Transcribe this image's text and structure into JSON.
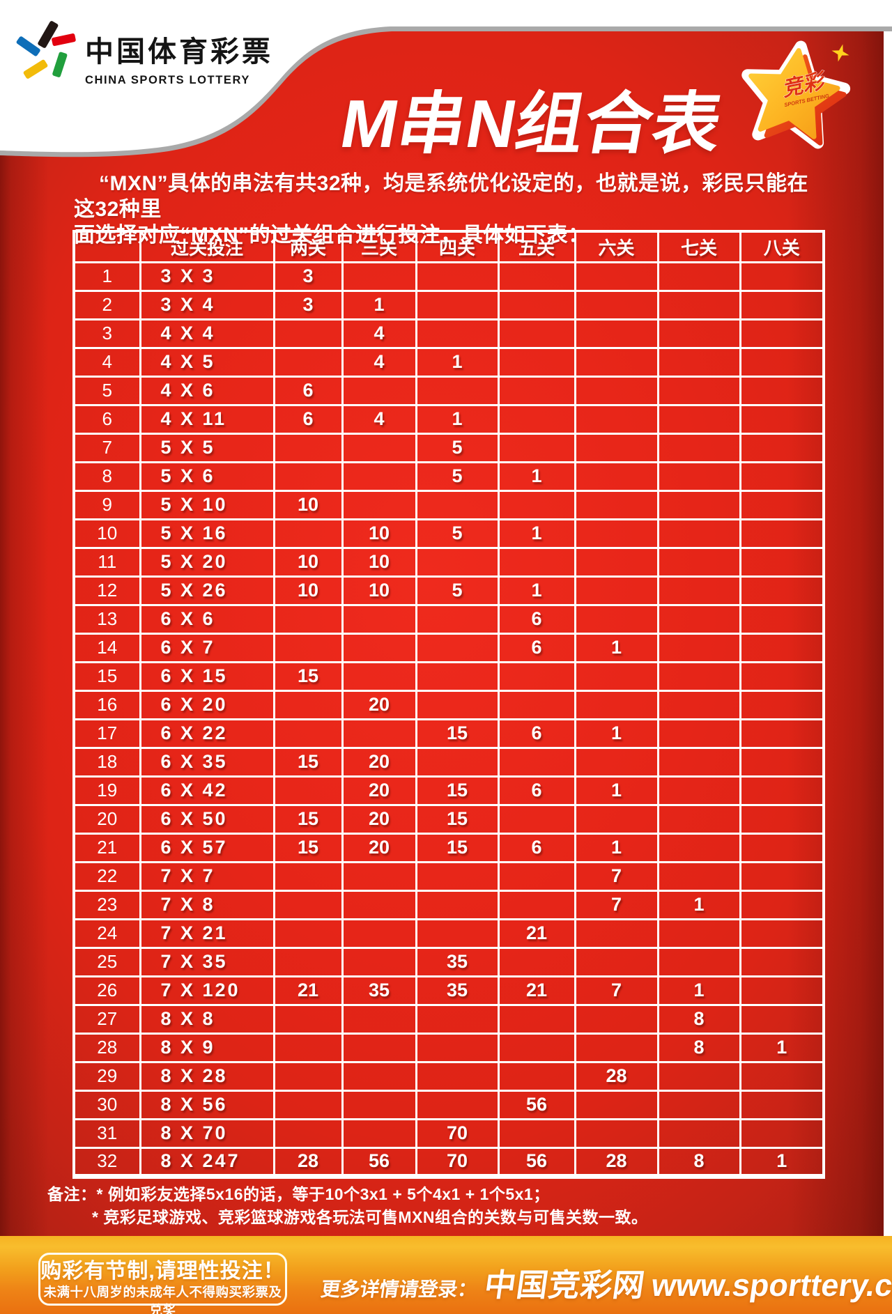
{
  "brand": {
    "logo_cn": "中国体育彩票",
    "logo_en": "CHINA SPORTS LOTTERY"
  },
  "header": {
    "title": "M串N组合表",
    "badge_cn": "竞彩",
    "badge_en": "SPORTS BETTING"
  },
  "intro": {
    "line1": "“MXN”具体的串法有共32种，均是系统优化设定的，也就是说，彩民只能在这32种里",
    "line2": "面选择对应“MXN”的过关组合进行投注，具体如下表："
  },
  "table": {
    "headers": [
      "",
      "过关投注",
      "两关",
      "三关",
      "四关",
      "五关",
      "六关",
      "七关",
      "八关"
    ],
    "rows": [
      {
        "no": "1",
        "bet": "3 X 3",
        "values": [
          "3",
          "",
          "",
          "",
          "",
          "",
          ""
        ]
      },
      {
        "no": "2",
        "bet": "3 X 4",
        "values": [
          "3",
          "1",
          "",
          "",
          "",
          "",
          ""
        ]
      },
      {
        "no": "3",
        "bet": "4 X 4",
        "values": [
          "",
          "4",
          "",
          "",
          "",
          "",
          ""
        ]
      },
      {
        "no": "4",
        "bet": "4 X 5",
        "values": [
          "",
          "4",
          "1",
          "",
          "",
          "",
          ""
        ]
      },
      {
        "no": "5",
        "bet": "4 X 6",
        "values": [
          "6",
          "",
          "",
          "",
          "",
          "",
          ""
        ]
      },
      {
        "no": "6",
        "bet": "4 X 11",
        "values": [
          "6",
          "4",
          "1",
          "",
          "",
          "",
          ""
        ]
      },
      {
        "no": "7",
        "bet": "5 X 5",
        "values": [
          "",
          "",
          "5",
          "",
          "",
          "",
          ""
        ]
      },
      {
        "no": "8",
        "bet": "5 X 6",
        "values": [
          "",
          "",
          "5",
          "1",
          "",
          "",
          ""
        ]
      },
      {
        "no": "9",
        "bet": "5 X 10",
        "values": [
          "10",
          "",
          "",
          "",
          "",
          "",
          ""
        ]
      },
      {
        "no": "10",
        "bet": "5 X 16",
        "values": [
          "",
          "10",
          "5",
          "1",
          "",
          "",
          ""
        ]
      },
      {
        "no": "11",
        "bet": "5 X 20",
        "values": [
          "10",
          "10",
          "",
          "",
          "",
          "",
          ""
        ]
      },
      {
        "no": "12",
        "bet": "5 X 26",
        "values": [
          "10",
          "10",
          "5",
          "1",
          "",
          "",
          ""
        ]
      },
      {
        "no": "13",
        "bet": "6 X 6",
        "values": [
          "",
          "",
          "",
          "6",
          "",
          "",
          ""
        ]
      },
      {
        "no": "14",
        "bet": "6 X 7",
        "values": [
          "",
          "",
          "",
          "6",
          "1",
          "",
          ""
        ]
      },
      {
        "no": "15",
        "bet": "6 X 15",
        "values": [
          "15",
          "",
          "",
          "",
          "",
          "",
          ""
        ]
      },
      {
        "no": "16",
        "bet": "6 X 20",
        "values": [
          "",
          "20",
          "",
          "",
          "",
          "",
          ""
        ]
      },
      {
        "no": "17",
        "bet": "6 X 22",
        "values": [
          "",
          "",
          "15",
          "6",
          "1",
          "",
          ""
        ]
      },
      {
        "no": "18",
        "bet": "6 X 35",
        "values": [
          "15",
          "20",
          "",
          "",
          "",
          "",
          ""
        ]
      },
      {
        "no": "19",
        "bet": "6 X 42",
        "values": [
          "",
          "20",
          "15",
          "6",
          "1",
          "",
          ""
        ]
      },
      {
        "no": "20",
        "bet": "6 X 50",
        "values": [
          "15",
          "20",
          "15",
          "",
          "",
          "",
          ""
        ]
      },
      {
        "no": "21",
        "bet": "6 X 57",
        "values": [
          "15",
          "20",
          "15",
          "6",
          "1",
          "",
          ""
        ]
      },
      {
        "no": "22",
        "bet": "7 X 7",
        "values": [
          "",
          "",
          "",
          "",
          "7",
          "",
          ""
        ]
      },
      {
        "no": "23",
        "bet": "7 X 8",
        "values": [
          "",
          "",
          "",
          "",
          "7",
          "1",
          ""
        ]
      },
      {
        "no": "24",
        "bet": "7 X 21",
        "values": [
          "",
          "",
          "",
          "21",
          "",
          "",
          ""
        ]
      },
      {
        "no": "25",
        "bet": "7 X 35",
        "values": [
          "",
          "",
          "35",
          "",
          "",
          "",
          ""
        ]
      },
      {
        "no": "26",
        "bet": "7 X 120",
        "values": [
          "21",
          "35",
          "35",
          "21",
          "7",
          "1",
          ""
        ]
      },
      {
        "no": "27",
        "bet": "8 X 8",
        "values": [
          "",
          "",
          "",
          "",
          "",
          "8",
          ""
        ]
      },
      {
        "no": "28",
        "bet": "8 X 9",
        "values": [
          "",
          "",
          "",
          "",
          "",
          "8",
          "1"
        ]
      },
      {
        "no": "29",
        "bet": "8 X 28",
        "values": [
          "",
          "",
          "",
          "",
          "28",
          "",
          ""
        ]
      },
      {
        "no": "30",
        "bet": "8 X 56",
        "values": [
          "",
          "",
          "",
          "56",
          "",
          "",
          ""
        ]
      },
      {
        "no": "31",
        "bet": "8 X 70",
        "values": [
          "",
          "",
          "70",
          "",
          "",
          "",
          ""
        ]
      },
      {
        "no": "32",
        "bet": "8 X 247",
        "values": [
          "28",
          "56",
          "70",
          "56",
          "28",
          "8",
          "1"
        ]
      }
    ]
  },
  "notes": {
    "label": "备注：",
    "items": [
      "* 例如彩友选择5x16的话，等于10个3x1 + 5个4x1 + 1个5x1；",
      "* 竞彩足球游戏、竞彩篮球游戏各玩法可售MXN组合的关数与可售关数一致。"
    ]
  },
  "footer": {
    "warning_title": "购彩有节制,请理性投注！",
    "warning_sub": "未满十八周岁的未成年人不得购买彩票及兑奖",
    "more_info_prefix": "更多详情请登录：",
    "site_name": "中国竞彩网",
    "site_url": "www.sporttery.cn"
  },
  "colors": {
    "page_red": "#e62518",
    "page_red_dark": "#a82013",
    "table_line": "#ffffff",
    "footer_orange_top": "#f6b322",
    "footer_orange_bottom": "#ea7010",
    "star_yellow": "#ffc527",
    "star_red": "#e23911",
    "logo_black": "#221714",
    "logo_red": "#e2000f",
    "logo_blue": "#0e6eb8",
    "logo_yellow": "#f2bb0a",
    "logo_green": "#219f3d"
  }
}
